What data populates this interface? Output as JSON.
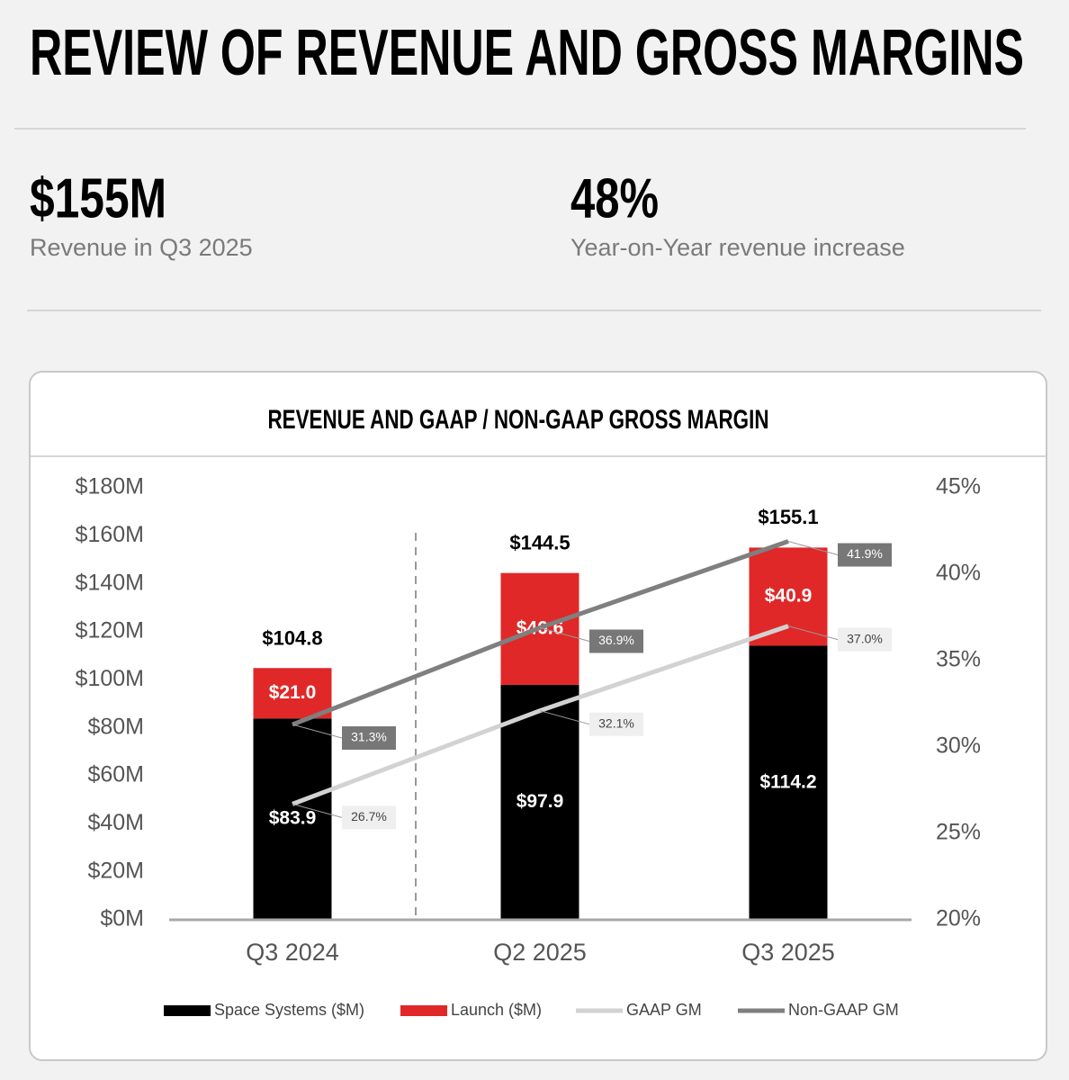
{
  "title": "REVIEW OF REVENUE AND GROSS MARGINS",
  "kpis": [
    {
      "value": "$155M",
      "label": "Revenue in Q3 2025"
    },
    {
      "value": "48%",
      "label": "Year-on-Year revenue increase"
    }
  ],
  "chart_data": {
    "type": "bar",
    "title": "REVENUE AND GAAP / NON-GAAP GROSS MARGIN",
    "categories": [
      "Q3 2024",
      "Q2 2025",
      "Q3 2025"
    ],
    "stacked": true,
    "series": [
      {
        "name": "Space Systems ($M)",
        "type": "bar",
        "color": "#000000",
        "values": [
          83.9,
          97.9,
          114.2
        ],
        "value_labels": [
          "$83.9",
          "$97.9",
          "$114.2"
        ]
      },
      {
        "name": "Launch ($M)",
        "type": "bar",
        "color": "#e02828",
        "values": [
          21.0,
          46.6,
          40.9
        ],
        "value_labels": [
          "$21.0",
          "$46.6",
          "$40.9"
        ]
      },
      {
        "name": "GAAP GM",
        "type": "line",
        "axis": "y2",
        "color": "#d2d2d2",
        "values": [
          26.7,
          32.1,
          37.0
        ],
        "value_labels": [
          "26.7%",
          "32.1%",
          "37.0%"
        ]
      },
      {
        "name": "Non-GAAP GM",
        "type": "line",
        "axis": "y2",
        "color": "#7f7f7f",
        "values": [
          31.3,
          36.9,
          41.9
        ],
        "value_labels": [
          "31.3%",
          "36.9%",
          "41.9%"
        ]
      }
    ],
    "totals": {
      "values": [
        104.8,
        144.5,
        155.1
      ],
      "value_labels": [
        "$104.8",
        "$144.5",
        "$155.1"
      ]
    },
    "ylim": [
      0,
      180
    ],
    "yticks": [
      {
        "value": 0,
        "label": "$0M"
      },
      {
        "value": 20,
        "label": "$20M"
      },
      {
        "value": 40,
        "label": "$40M"
      },
      {
        "value": 60,
        "label": "$60M"
      },
      {
        "value": 80,
        "label": "$80M"
      },
      {
        "value": 100,
        "label": "$100M"
      },
      {
        "value": 120,
        "label": "$120M"
      },
      {
        "value": 140,
        "label": "$140M"
      },
      {
        "value": 160,
        "label": "$160M"
      },
      {
        "value": 180,
        "label": "$180M"
      }
    ],
    "y2lim": [
      20,
      45
    ],
    "y2ticks": [
      {
        "value": 20,
        "label": "20%"
      },
      {
        "value": 25,
        "label": "25%"
      },
      {
        "value": 30,
        "label": "30%"
      },
      {
        "value": 35,
        "label": "35%"
      },
      {
        "value": 40,
        "label": "40%"
      },
      {
        "value": 45,
        "label": "45%"
      }
    ],
    "legend": "bottom"
  }
}
